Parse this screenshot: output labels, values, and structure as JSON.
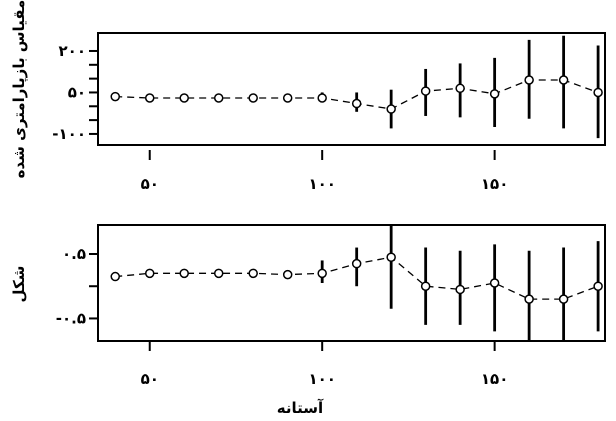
{
  "chart_data": [
    {
      "type": "scatter",
      "name": "upper-panel",
      "ylabel": "مقیاس بازپارامتری شده",
      "xlabel": "",
      "xlim": [
        35,
        182
      ],
      "ylim": [
        -140,
        265
      ],
      "x_ticks": [
        50,
        100,
        150
      ],
      "x_tick_labels": [
        "۵۰",
        "۱۰۰",
        "۱۵۰"
      ],
      "y_ticks": [
        -100,
        50,
        200
      ],
      "y_tick_labels": [
        "-۱۰۰",
        "۵۰",
        "۲۰۰"
      ],
      "y_minor_ticks": [
        -50,
        0,
        100,
        150
      ],
      "series": [
        {
          "x": [
            40,
            50,
            60,
            70,
            80,
            90,
            100,
            110,
            120,
            130,
            140,
            150,
            160,
            170,
            180
          ],
          "y": [
            35,
            30,
            30,
            30,
            30,
            30,
            30,
            10,
            -10,
            55,
            65,
            45,
            95,
            95,
            50
          ],
          "lower": [
            35,
            30,
            30,
            30,
            30,
            30,
            15,
            -20,
            -80,
            -35,
            -40,
            -75,
            -45,
            -80,
            -115
          ],
          "upper": [
            35,
            30,
            30,
            30,
            30,
            45,
            50,
            50,
            60,
            135,
            155,
            175,
            240,
            255,
            220
          ]
        }
      ]
    },
    {
      "type": "scatter",
      "name": "lower-panel",
      "ylabel": "شکل",
      "xlabel": "آستانه",
      "xlim": [
        35,
        182
      ],
      "ylim": [
        -0.85,
        0.95
      ],
      "x_ticks": [
        50,
        100,
        150
      ],
      "x_tick_labels": [
        "۵۰",
        "۱۰۰",
        "۱۵۰"
      ],
      "y_ticks": [
        -0.5,
        0.5
      ],
      "y_tick_labels": [
        "-۰.۵",
        "۰.۵"
      ],
      "y_minor_ticks": [
        0
      ],
      "series": [
        {
          "x": [
            40,
            50,
            60,
            70,
            80,
            90,
            100,
            110,
            120,
            130,
            140,
            150,
            160,
            170,
            180
          ],
          "y": [
            0.15,
            0.2,
            0.2,
            0.2,
            0.2,
            0.18,
            0.2,
            0.35,
            0.45,
            0.0,
            -0.05,
            0.05,
            -0.2,
            -0.2,
            0.0
          ],
          "lower": [
            0.15,
            0.2,
            0.2,
            0.15,
            0.15,
            0.13,
            0.05,
            0.0,
            -0.35,
            -0.6,
            -0.6,
            -0.7,
            -0.85,
            -0.85,
            -0.7
          ],
          "upper": [
            0.15,
            0.2,
            0.2,
            0.25,
            0.25,
            0.25,
            0.4,
            0.6,
            0.95,
            0.6,
            0.55,
            0.65,
            0.55,
            0.6,
            0.7
          ]
        }
      ]
    }
  ]
}
